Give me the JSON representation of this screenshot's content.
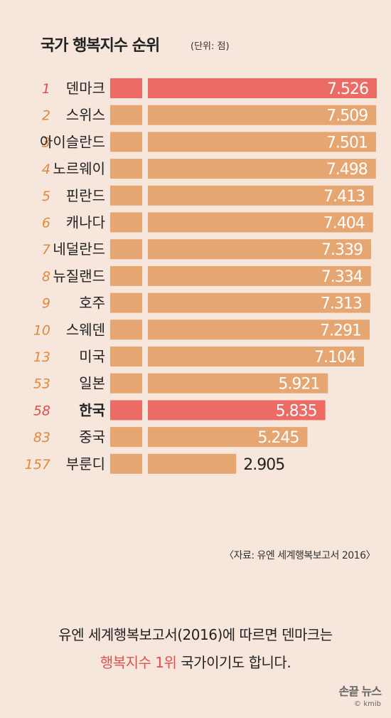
{
  "chart_data": {
    "type": "bar",
    "orientation": "horizontal",
    "title": "국가 행복지수 순위",
    "unit": "(단위: 점)",
    "source": "〈자료: 유엔 세계행복보고서 2016〉",
    "rows": [
      {
        "rank": "1",
        "country": "덴마크",
        "value": 7.526,
        "label": "7.526",
        "highlight": true
      },
      {
        "rank": "2",
        "country": "스위스",
        "value": 7.509,
        "label": "7.509",
        "highlight": false
      },
      {
        "rank": "3",
        "country": "아이슬란드",
        "value": 7.501,
        "label": "7.501",
        "highlight": false
      },
      {
        "rank": "4",
        "country": "노르웨이",
        "value": 7.498,
        "label": "7.498",
        "highlight": false
      },
      {
        "rank": "5",
        "country": "핀란드",
        "value": 7.413,
        "label": "7.413",
        "highlight": false
      },
      {
        "rank": "6",
        "country": "캐나다",
        "value": 7.404,
        "label": "7.404",
        "highlight": false
      },
      {
        "rank": "7",
        "country": "네덜란드",
        "value": 7.339,
        "label": "7.339",
        "highlight": false
      },
      {
        "rank": "8",
        "country": "뉴질랜드",
        "value": 7.334,
        "label": "7.334",
        "highlight": false
      },
      {
        "rank": "9",
        "country": "호주",
        "value": 7.313,
        "label": "7.313",
        "highlight": false
      },
      {
        "rank": "10",
        "country": "스웨덴",
        "value": 7.291,
        "label": "7.291",
        "highlight": false
      },
      {
        "rank": "13",
        "country": "미국",
        "value": 7.104,
        "label": "7.104",
        "highlight": false
      },
      {
        "rank": "53",
        "country": "일본",
        "value": 5.921,
        "label": "5.921",
        "highlight": false
      },
      {
        "rank": "58",
        "country": "한국",
        "value": 5.835,
        "label": "5.835",
        "highlight": true
      },
      {
        "rank": "83",
        "country": "중국",
        "value": 5.245,
        "label": "5.245",
        "highlight": false
      },
      {
        "rank": "157",
        "country": "부룬디",
        "value": 2.905,
        "label": "2.905",
        "highlight": false
      }
    ]
  },
  "colors": {
    "bar": "#e6a671",
    "highlight_bar": "#ec6b64",
    "rank": "#e08a3a",
    "highlight_rank": "#d9534f",
    "background": "#f6e6dc"
  },
  "caption": {
    "line1": "유엔 세계행복보고서(2016)에 따르면 덴마크는",
    "line2_highlight": "행복지수 1위",
    "line2_rest": " 국가이기도 합니다."
  },
  "logo": {
    "main": "손끝 뉴스",
    "sub": "kmib"
  }
}
